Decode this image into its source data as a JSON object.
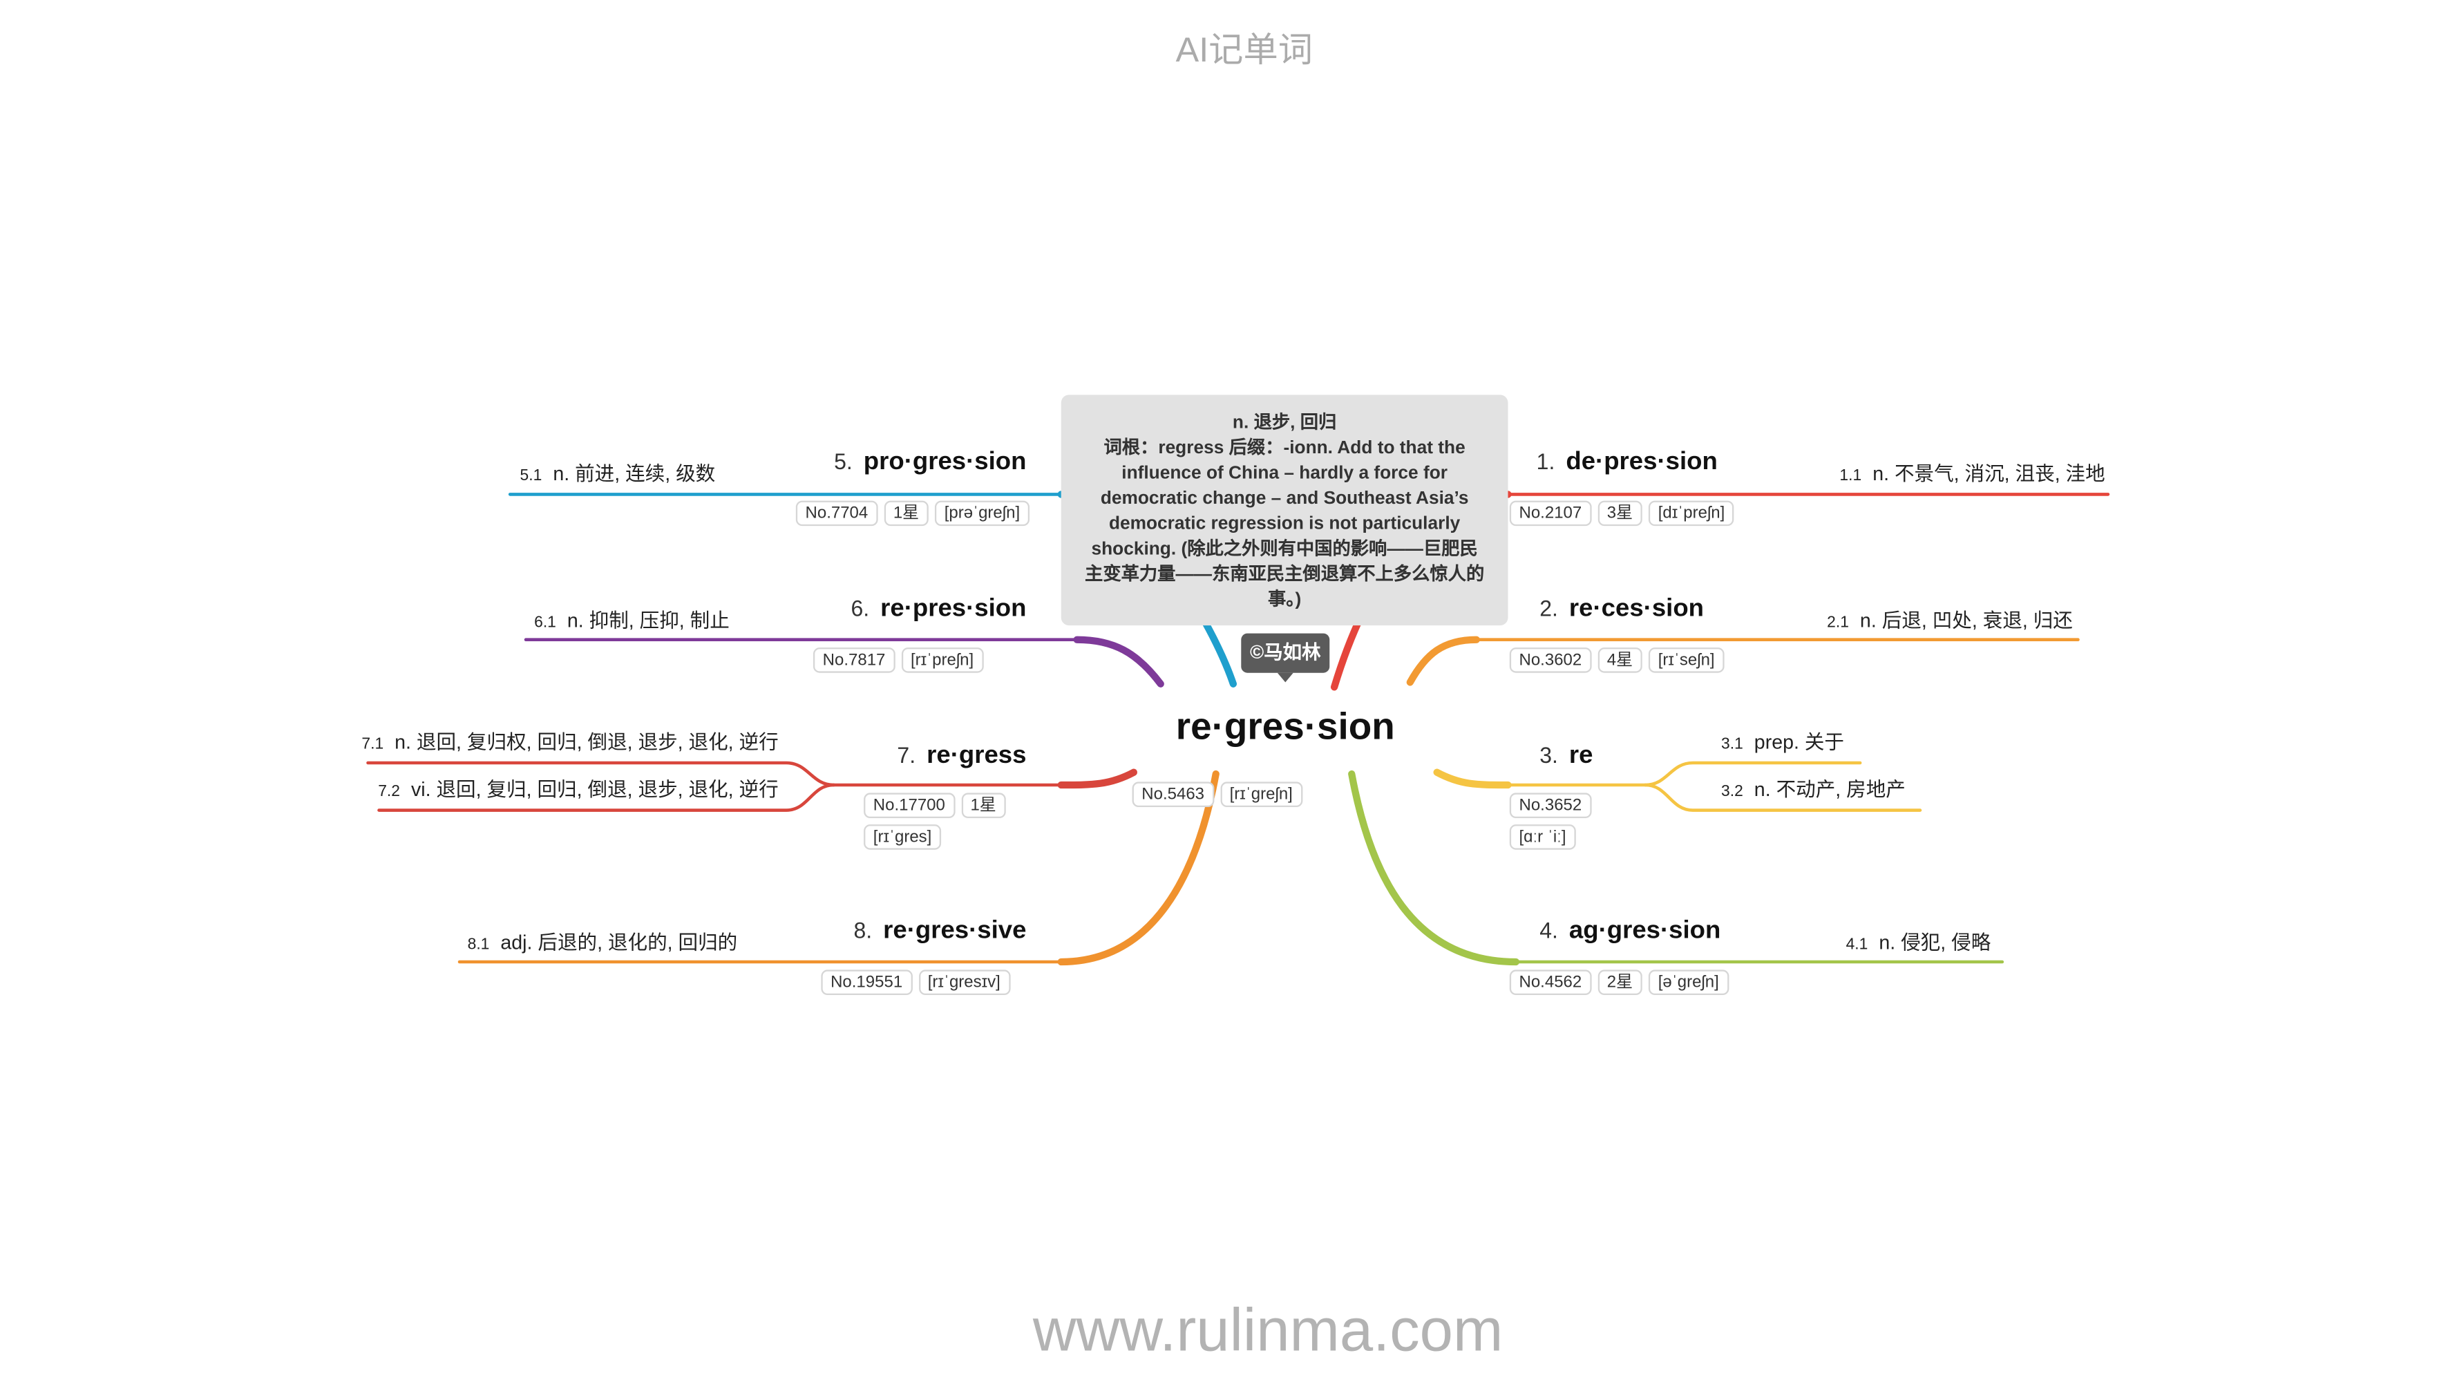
{
  "header": {
    "title": "AI记单词"
  },
  "center": {
    "word": "re·gres·sion",
    "no": "No.5463",
    "phonetic": "[rɪˈɡreʃn]",
    "note": {
      "definition": "n. 退步, 回归",
      "lines": [
        "词根：regress 后缀：-ionn. Add to that the",
        "influence of China – hardly a force for",
        "democratic change – and Southeast Asia’s",
        "democratic regression is not particularly",
        "shocking. (除此之外则有中国的影响——巨肥民",
        "主变革力量——东南亚民主倒退算不上多么惊人的",
        "事。)"
      ]
    },
    "copyright": "©马如林"
  },
  "branches": [
    {
      "index": "1.",
      "word": "de·pres·sion",
      "color": "#e5453b",
      "no": "No.2107",
      "stars": "3星",
      "phonetic": "[dɪˈpreʃn]",
      "senses": [
        {
          "num": "1.1",
          "text": "n. 不景气, 消沉, 沮丧, 洼地"
        }
      ]
    },
    {
      "index": "2.",
      "word": "re·ces·sion",
      "color": "#f29a32",
      "no": "No.3602",
      "stars": "4星",
      "phonetic": "[rɪˈseʃn]",
      "senses": [
        {
          "num": "2.1",
          "text": "n. 后退, 凹处, 衰退, 归还"
        }
      ]
    },
    {
      "index": "3.",
      "word": "re",
      "color": "#f5c443",
      "no": "No.3652",
      "phonetic": "[ɑːr ˈiː]",
      "senses": [
        {
          "num": "3.1",
          "text": "prep. 关于"
        },
        {
          "num": "3.2",
          "text": "n. 不动产, 房地产"
        }
      ]
    },
    {
      "index": "4.",
      "word": "ag·gres·sion",
      "color": "#a3c54a",
      "no": "No.4562",
      "stars": "2星",
      "phonetic": "[əˈɡreʃn]",
      "senses": [
        {
          "num": "4.1",
          "text": "n. 侵犯, 侵略"
        }
      ]
    },
    {
      "index": "5.",
      "word": "pro·gres·sion",
      "color": "#1f9fcd",
      "no": "No.7704",
      "stars": "1星",
      "phonetic": "[prəˈɡreʃn]",
      "senses": [
        {
          "num": "5.1",
          "text": "n. 前进, 连续, 级数"
        }
      ]
    },
    {
      "index": "6.",
      "word": "re·pres·sion",
      "color": "#7e3a99",
      "no": "No.7817",
      "phonetic": "[rɪˈpreʃn]",
      "senses": [
        {
          "num": "6.1",
          "text": "n. 抑制, 压抑, 制止"
        }
      ]
    },
    {
      "index": "7.",
      "word": "re·gress",
      "color": "#d8463c",
      "no": "No.17700",
      "stars": "1星",
      "phonetic": "[rɪˈɡres]",
      "senses": [
        {
          "num": "7.1",
          "text": "n. 退回, 复归权, 回归, 倒退, 退步, 退化, 逆行"
        },
        {
          "num": "7.2",
          "text": "vi. 退回, 复归, 回归, 倒退, 退步, 退化, 逆行"
        }
      ]
    },
    {
      "index": "8.",
      "word": "re·gres·sive",
      "color": "#f0922e",
      "no": "No.19551",
      "phonetic": "[rɪˈɡresɪv]",
      "senses": [
        {
          "num": "8.1",
          "text": "adj. 后退的, 退化的, 回归的"
        }
      ]
    }
  ],
  "footer": {
    "watermark": "www.rulinma.com"
  }
}
